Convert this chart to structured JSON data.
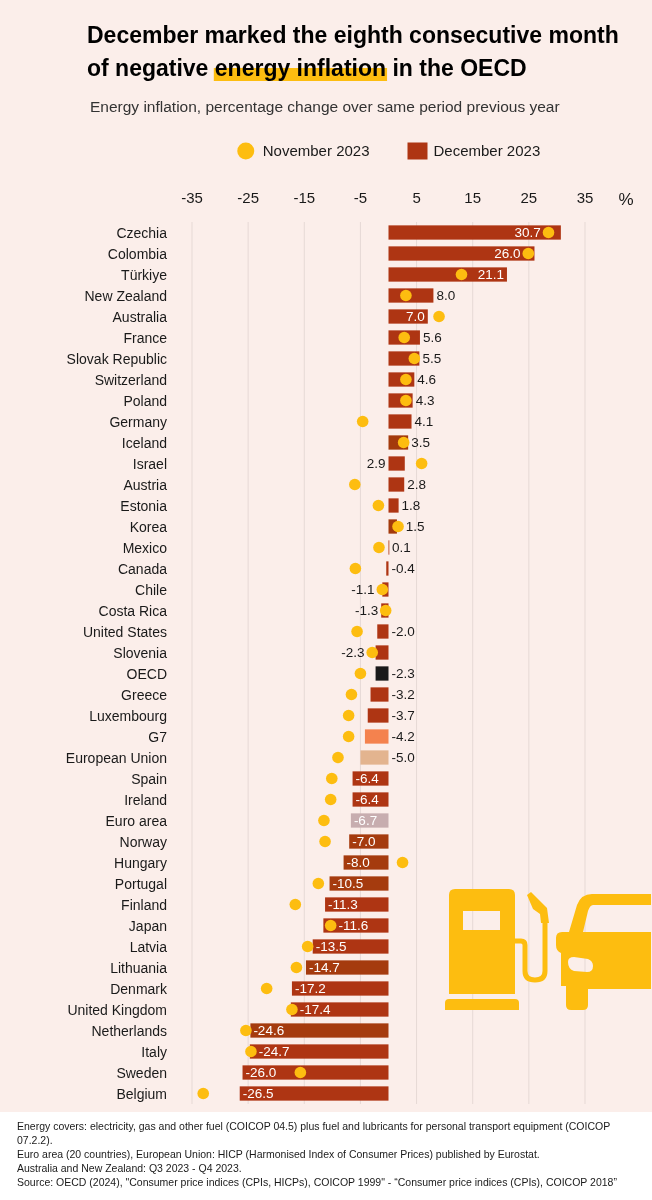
{
  "chart_data": {
    "type": "bar",
    "orientation": "horizontal",
    "title": "December marked the eighth consecutive month of negative energy inflation in the OECD",
    "subtitle": "Energy inflation, percentage change over same period previous year",
    "xlabel": "%",
    "categories": [
      "Czechia",
      "Colombia",
      "Türkiye",
      "New Zealand",
      "Australia",
      "France",
      "Slovak Republic",
      "Switzerland",
      "Poland",
      "Germany",
      "Iceland",
      "Israel",
      "Austria",
      "Estonia",
      "Korea",
      "Mexico",
      "Canada",
      "Chile",
      "Costa Rica",
      "United States",
      "Slovenia",
      "OECD",
      "Greece",
      "Luxembourg",
      "G7",
      "European Union",
      "Spain",
      "Ireland",
      "Euro area",
      "Norway",
      "Hungary",
      "Portugal",
      "Finland",
      "Japan",
      "Latvia",
      "Lithuania",
      "Denmark",
      "United Kingdom",
      "Netherlands",
      "Italy",
      "Sweden",
      "Belgium"
    ],
    "series": [
      {
        "name": "November 2023",
        "type": "scatter",
        "color": "#fdbd10",
        "values": [
          28.5,
          24.9,
          13.0,
          3.1,
          9.0,
          2.8,
          4.6,
          3.1,
          3.1,
          -4.6,
          2.7,
          5.9,
          -6.0,
          -1.8,
          1.7,
          -1.7,
          -5.9,
          -1.1,
          -0.5,
          -5.6,
          -2.9,
          -5.0,
          -6.6,
          -7.1,
          -7.1,
          -9.0,
          -10.1,
          -10.3,
          -11.5,
          -11.3,
          2.5,
          -12.5,
          -16.6,
          -10.3,
          -14.4,
          -16.4,
          -21.7,
          -17.2,
          -25.4,
          -24.5,
          -15.7,
          -33.0
        ]
      },
      {
        "name": "December 2023",
        "type": "bar",
        "color": "#ae3513",
        "colors": [
          "#ae3513",
          "#ae3513",
          "#ae3513",
          "#ae3513",
          "#ae3513",
          "#ae3513",
          "#ae3513",
          "#ae3513",
          "#ae3513",
          "#ae3513",
          "#a33a0c",
          "#ae3513",
          "#ae3513",
          "#ae3513",
          "#a33a0c",
          "#ae3513",
          "#ae3513",
          "#ae3513",
          "#ae3513",
          "#ae3513",
          "#ae3513",
          "#1a1a1a",
          "#ae3513",
          "#ae3513",
          "#f4824e",
          "#e3b48f",
          "#ae3513",
          "#ae3513",
          "#c7adaf",
          "#a53b0e",
          "#a53b0e",
          "#a53b0e",
          "#ae3513",
          "#ae3513",
          "#ae3513",
          "#a53b0e",
          "#ae3513",
          "#ae3513",
          "#a53b0e",
          "#ae3513",
          "#ae3513",
          "#ae3513"
        ],
        "values": [
          30.7,
          26.0,
          21.1,
          8.0,
          7.0,
          5.6,
          5.5,
          4.6,
          4.3,
          4.1,
          3.5,
          2.9,
          2.8,
          1.8,
          1.5,
          0.1,
          -0.4,
          -1.1,
          -1.3,
          -2.0,
          -2.3,
          -2.3,
          -3.2,
          -3.7,
          -4.2,
          -5.0,
          -6.4,
          -6.4,
          -6.7,
          -7.0,
          -8.0,
          -10.5,
          -11.3,
          -11.6,
          -13.5,
          -14.7,
          -17.2,
          -17.4,
          -24.6,
          -24.7,
          -26.0,
          -26.5
        ],
        "value_labels": [
          "30.7",
          "26.0",
          "21.1",
          "8.0",
          "7.0",
          "5.6",
          "5.5",
          "4.6",
          "4.3",
          "4.1",
          "3.5",
          "2.9",
          "2.8",
          "1.8",
          "1.5",
          "0.1",
          "-0.4",
          "-1.1",
          "-1.3",
          "-2.0",
          "-2.3",
          "-2.3",
          "-3.2",
          "-3.7",
          "-4.2",
          "-5.0",
          "-6.4",
          "-6.4",
          "-6.7",
          "-7.0",
          "-8.0",
          "-10.5",
          "-11.3",
          "-11.6",
          "-13.5",
          "-14.7",
          "-17.2",
          "-17.4",
          "-24.6",
          "-24.7",
          "-26.0",
          "-26.5"
        ]
      }
    ],
    "xlim": [
      -35,
      35
    ],
    "xticks": [
      -35,
      -25,
      -15,
      -5,
      5,
      15,
      25,
      35
    ],
    "grid": "x",
    "legend": "top",
    "marker": "circle",
    "annotations": [
      "Energy covers: electricity, gas and other fuel (COICOP 04.5) plus fuel and lubricants for personal transport equipment (COICOP 07.2.2).",
      "Euro area (20 countries), European Union: HICP (Harmonised Index of Consumer Prices) published by Eurostat.",
      "Australia and New Zealand: Q3 2023 - Q4 2023.",
      "Source: OECD (2024), \"Consumer price indices (CPIs, HICPs), COICOP 1999\" - “Consumer price indices (CPIs), COICOP 2018”"
    ]
  }
}
